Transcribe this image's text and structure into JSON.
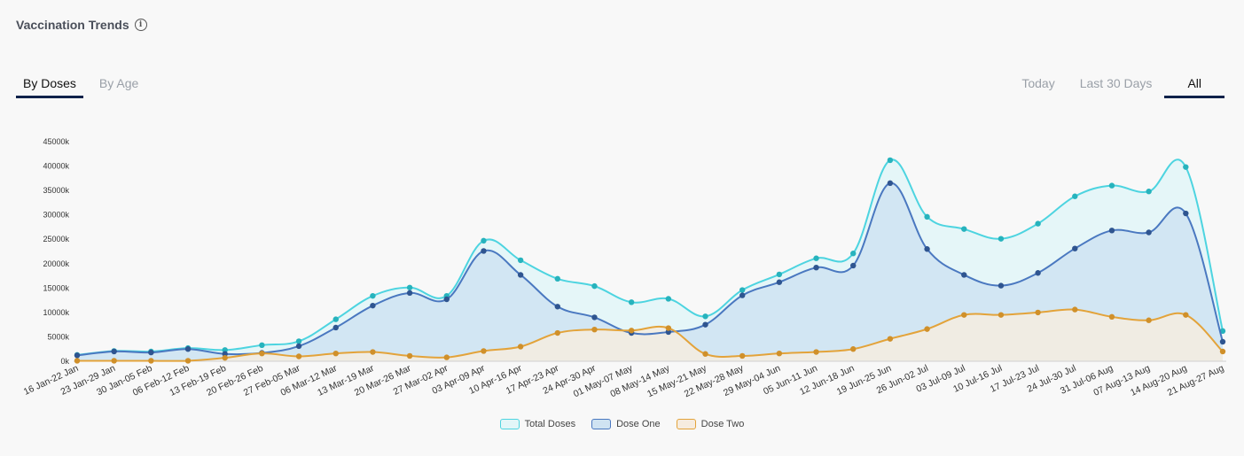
{
  "header": {
    "title": "Vaccination Trends",
    "info_icon": "info-circle-icon"
  },
  "tabs_left": [
    {
      "label": "By Doses",
      "active": true
    },
    {
      "label": "By Age",
      "active": false
    }
  ],
  "tabs_right": [
    {
      "label": "Today",
      "active": false
    },
    {
      "label": "Last 30 Days",
      "active": false
    },
    {
      "label": "All",
      "active": true
    }
  ],
  "chart_data": {
    "type": "area",
    "title": "Vaccination Trends",
    "categories": [
      "16 Jan-22 Jan",
      "23 Jan-29 Jan",
      "30 Jan-05 Feb",
      "06 Feb-12 Feb",
      "13 Feb-19 Feb",
      "20 Feb-26 Feb",
      "27 Feb-05 Mar",
      "06 Mar-12 Mar",
      "13 Mar-19 Mar",
      "20 Mar-26 Mar",
      "27 Mar-02 Apr",
      "03 Apr-09 Apr",
      "10 Apr-16 Apr",
      "17 Apr-23 Apr",
      "24 Apr-30 Apr",
      "01 May-07 May",
      "08 May-14 May",
      "15 May-21 May",
      "22 May-28 May",
      "29 May-04 Jun",
      "05 Jun-11 Jun",
      "12 Jun-18 Jun",
      "19 Jun-25 Jun",
      "26 Jun-02 Jul",
      "03 Jul-09 Jul",
      "10 Jul-16 Jul",
      "17 Jul-23 Jul",
      "24 Jul-30 Jul",
      "31 Jul-06 Aug",
      "07 Aug-13 Aug",
      "14 Aug-20 Aug",
      "21 Aug-27 Aug"
    ],
    "y_ticks": [
      "0k",
      "5000k",
      "10000k",
      "15000k",
      "20000k",
      "25000k",
      "30000k",
      "35000k",
      "40000k",
      "45000k"
    ],
    "ylim": [
      0,
      45000
    ],
    "series": [
      {
        "name": "Total Doses",
        "color": "#4dd4e0",
        "fill": "#e2f6f8",
        "values": [
          1300,
          2100,
          2000,
          2700,
          2300,
          3300,
          4100,
          8600,
          13400,
          15100,
          13400,
          24700,
          20700,
          16900,
          15400,
          12100,
          12800,
          9200,
          14600,
          17800,
          21100,
          22100,
          41200,
          29600,
          27100,
          25100,
          28200,
          33800,
          36000,
          34800,
          39800,
          6200
        ]
      },
      {
        "name": "Dose One",
        "color": "#4a78c0",
        "fill": "#cfe3f2",
        "values": [
          1200,
          2000,
          1800,
          2500,
          1500,
          1700,
          3100,
          6900,
          11400,
          14000,
          12700,
          22600,
          17700,
          11200,
          9000,
          5800,
          6000,
          7500,
          13500,
          16200,
          19200,
          19600,
          36500,
          23000,
          17700,
          15500,
          18100,
          23100,
          26800,
          26400,
          30300,
          4000
        ]
      },
      {
        "name": "Dose Two",
        "color": "#e3a33a",
        "fill": "#f6ecdf",
        "values": [
          100,
          100,
          100,
          100,
          700,
          1600,
          1000,
          1600,
          1900,
          1100,
          800,
          2100,
          3000,
          5800,
          6500,
          6300,
          6800,
          1500,
          1100,
          1600,
          1900,
          2500,
          4600,
          6600,
          9500,
          9500,
          10000,
          10600,
          9100,
          8400,
          9500,
          2000
        ]
      }
    ]
  }
}
